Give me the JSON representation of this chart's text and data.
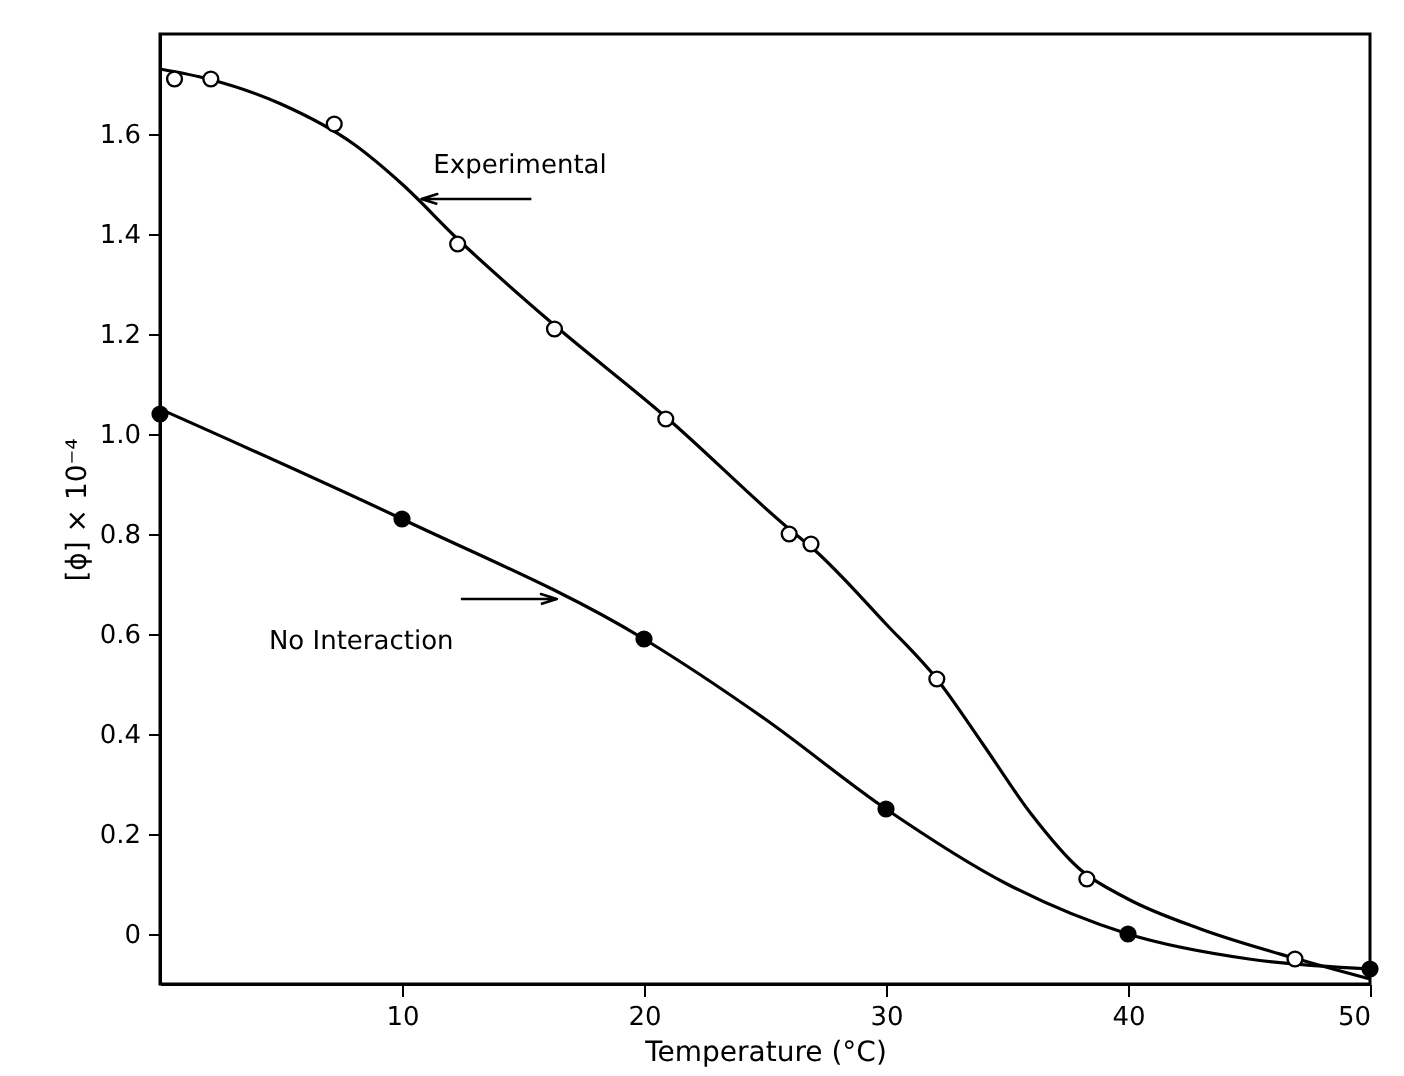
{
  "chart_data": {
    "type": "scatter",
    "xlabel": "Temperature (°C)",
    "ylabel": "[ϕ] × 10⁻⁴",
    "xlim": [
      0,
      50
    ],
    "ylim": [
      -0.1,
      1.8
    ],
    "xticks": [
      10,
      20,
      30,
      40,
      50
    ],
    "yticks": [
      0,
      0.2,
      0.4,
      0.6,
      0.8,
      {
        "value": 1.0,
        "label": "1.0"
      },
      1.2,
      1.4,
      1.6
    ],
    "grid": false,
    "marker": "circle",
    "series": [
      {
        "type": "line",
        "marker": "none",
        "color": "#000000",
        "x": [
          0,
          2,
          5,
          8,
          10,
          12.3,
          16,
          21,
          26,
          27,
          30,
          32.1,
          34,
          36,
          38,
          40,
          43,
          47,
          50
        ],
        "values": [
          1.73,
          1.71,
          1.66,
          1.58,
          1.5,
          1.39,
          1.23,
          1.03,
          0.81,
          0.77,
          0.62,
          0.51,
          0.38,
          0.24,
          0.13,
          0.07,
          0.01,
          -0.05,
          -0.09
        ]
      },
      {
        "type": "line",
        "marker": "none",
        "color": "#000000",
        "x": [
          0,
          10,
          20,
          25,
          30,
          35,
          40,
          45,
          50
        ],
        "values": [
          1.05,
          0.83,
          0.59,
          0.43,
          0.25,
          0.1,
          0.0,
          -0.05,
          -0.07
        ]
      },
      {
        "color": "#ffffff",
        "x": [
          0.6,
          2.1,
          7.2,
          12.3,
          16.3,
          20.9,
          26.0,
          26.9,
          32.1,
          38.3,
          46.9
        ],
        "values": [
          1.71,
          1.71,
          1.62,
          1.38,
          1.21,
          1.03,
          0.8,
          0.78,
          0.51,
          0.11,
          -0.05
        ]
      },
      {
        "color": "#000000",
        "x": [
          0,
          10,
          20,
          30,
          40,
          50
        ],
        "values": [
          1.04,
          0.83,
          0.59,
          0.25,
          0.0,
          -0.07
        ]
      }
    ],
    "annotations": [
      {
        "text": "Experimental",
        "x": 10.8,
        "y": 1.47
      },
      {
        "text": "No Interaction",
        "x": 16.4,
        "y": 0.67
      }
    ]
  }
}
